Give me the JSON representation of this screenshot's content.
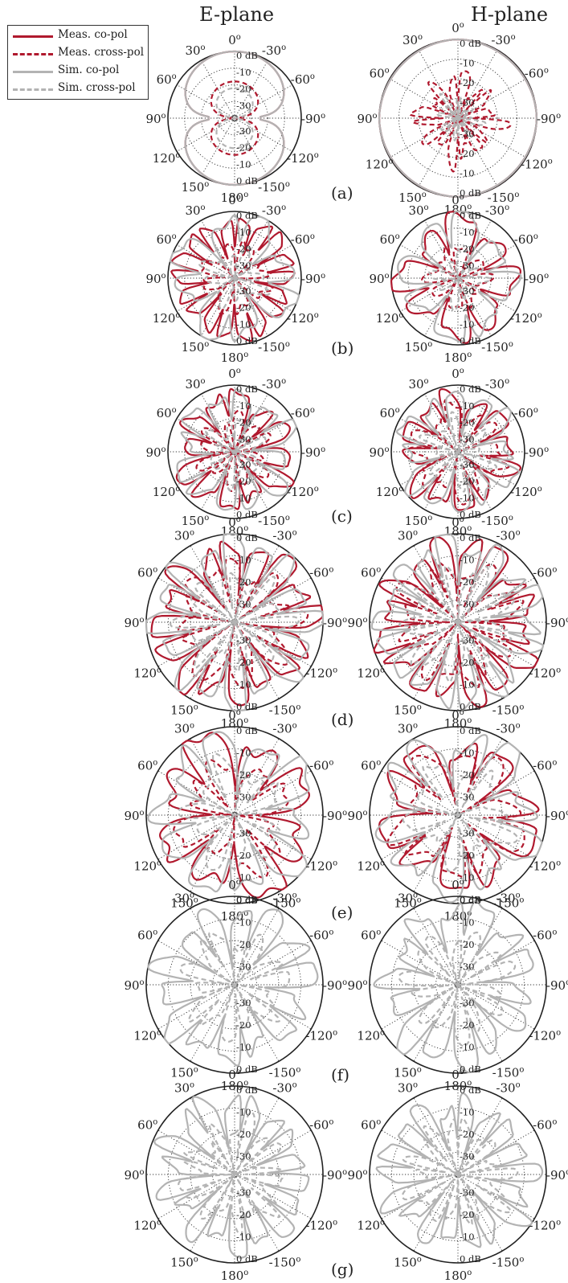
{
  "titles": {
    "e_plane": "E-plane",
    "h_plane": "H-plane"
  },
  "legend": [
    {
      "label": "Meas. co-pol",
      "color": "#b0192e",
      "dash": "solid"
    },
    {
      "label": "Meas. cross-pol",
      "color": "#b0192e",
      "dash": "dashed"
    },
    {
      "label": "Sim. co-pol",
      "color": "#b3b3b3",
      "dash": "solid"
    },
    {
      "label": "Sim. cross-pol",
      "color": "#b3b3b3",
      "dash": "dashed"
    }
  ],
  "angle_labels": [
    {
      "deg": 0,
      "text": "0o"
    },
    {
      "deg": -30,
      "text": "-30o"
    },
    {
      "deg": -60,
      "text": "-60o"
    },
    {
      "deg": -90,
      "text": "-90o"
    },
    {
      "deg": -120,
      "text": "-120o"
    },
    {
      "deg": -150,
      "text": "-150o"
    },
    {
      "deg": 180,
      "text": "180o"
    },
    {
      "deg": 150,
      "text": "150o"
    },
    {
      "deg": 120,
      "text": "120o"
    },
    {
      "deg": 90,
      "text": "90o"
    },
    {
      "deg": 60,
      "text": "60o"
    },
    {
      "deg": 30,
      "text": "30o"
    }
  ],
  "radial_labels_upper": [
    "0 dB",
    "-10",
    "-20",
    "-30"
  ],
  "radial_labels_lower": [
    "-30",
    "-20",
    "-10",
    "0 dB"
  ],
  "subfigure_labels": [
    "(a)",
    "(b)",
    "(c)",
    "(d)",
    "(e)",
    "(f)",
    "(g)"
  ],
  "chart_data": [
    {
      "type": "polar",
      "subfigure": "(a)",
      "plane": "E-plane",
      "rlim_db": [
        -40,
        0
      ],
      "series": [
        {
          "name": "Meas. co-pol",
          "pattern": "figure-eight",
          "max_db": 0
        },
        {
          "name": "Meas. cross-pol",
          "pattern": "figure-eight",
          "max_db": -18
        },
        {
          "name": "Sim. co-pol",
          "pattern": "figure-eight",
          "max_db": 0
        },
        {
          "name": "Sim. cross-pol",
          "pattern": "figure-eight",
          "max_db": -22
        }
      ]
    },
    {
      "type": "polar",
      "subfigure": "(a)",
      "plane": "H-plane",
      "rlim_db": [
        -40,
        0
      ],
      "series": [
        {
          "name": "Meas. co-pol",
          "pattern": "omnidirectional",
          "max_db": 0
        },
        {
          "name": "Meas. cross-pol",
          "pattern": "multi-lobe",
          "max_db": -16
        },
        {
          "name": "Sim. co-pol",
          "pattern": "omnidirectional",
          "max_db": 0
        },
        {
          "name": "Sim. cross-pol",
          "pattern": "multi-lobe",
          "max_db": -28
        }
      ]
    },
    {
      "type": "polar",
      "subfigure": "(b)",
      "plane": "E-plane",
      "rlim_db": [
        -40,
        0
      ],
      "series": [
        {
          "name": "Meas. co-pol",
          "pattern": "multi-lobe",
          "max_db": -1
        },
        {
          "name": "Meas. cross-pol",
          "pattern": "multi-lobe",
          "max_db": -16
        },
        {
          "name": "Sim. co-pol",
          "pattern": "multi-lobe",
          "max_db": -1
        },
        {
          "name": "Sim. cross-pol",
          "pattern": "multi-lobe",
          "max_db": -20
        }
      ]
    },
    {
      "type": "polar",
      "subfigure": "(b)",
      "plane": "H-plane",
      "rlim_db": [
        -40,
        0
      ],
      "series": [
        {
          "name": "Meas. co-pol",
          "pattern": "multi-lobe",
          "max_db": -2
        },
        {
          "name": "Meas. cross-pol",
          "pattern": "multi-lobe",
          "max_db": -18
        },
        {
          "name": "Sim. co-pol",
          "pattern": "multi-lobe",
          "max_db": -2
        },
        {
          "name": "Sim. cross-pol",
          "pattern": "multi-lobe",
          "max_db": -22
        }
      ]
    },
    {
      "type": "polar",
      "subfigure": "(c)",
      "plane": "E-plane",
      "rlim_db": [
        -40,
        0
      ],
      "series": [
        {
          "name": "Meas. co-pol",
          "pattern": "multi-lobe",
          "max_db": -3
        },
        {
          "name": "Meas. cross-pol",
          "pattern": "multi-lobe",
          "max_db": -16
        },
        {
          "name": "Sim. co-pol",
          "pattern": "multi-lobe",
          "max_db": -2
        },
        {
          "name": "Sim. cross-pol",
          "pattern": "multi-lobe",
          "max_db": -20
        }
      ]
    },
    {
      "type": "polar",
      "subfigure": "(c)",
      "plane": "H-plane",
      "rlim_db": [
        -40,
        0
      ],
      "series": [
        {
          "name": "Meas. co-pol",
          "pattern": "multi-lobe",
          "max_db": -3
        },
        {
          "name": "Meas. cross-pol",
          "pattern": "multi-lobe",
          "max_db": -10
        },
        {
          "name": "Sim. co-pol",
          "pattern": "multi-lobe",
          "max_db": -2
        },
        {
          "name": "Sim. cross-pol",
          "pattern": "multi-lobe",
          "max_db": -18
        }
      ]
    },
    {
      "type": "polar",
      "subfigure": "(d)",
      "plane": "E-plane",
      "rlim_db": [
        -40,
        0
      ],
      "series": [
        {
          "name": "Meas. co-pol",
          "pattern": "multi-lobe",
          "max_db": -1
        },
        {
          "name": "Meas. cross-pol",
          "pattern": "multi-lobe",
          "max_db": -10
        },
        {
          "name": "Sim. co-pol",
          "pattern": "multi-lobe",
          "max_db": 0
        },
        {
          "name": "Sim. cross-pol",
          "pattern": "multi-lobe",
          "max_db": -14
        }
      ]
    },
    {
      "type": "polar",
      "subfigure": "(d)",
      "plane": "H-plane",
      "rlim_db": [
        -40,
        0
      ],
      "series": [
        {
          "name": "Meas. co-pol",
          "pattern": "multi-lobe",
          "max_db": -1
        },
        {
          "name": "Meas. cross-pol",
          "pattern": "multi-lobe",
          "max_db": -10
        },
        {
          "name": "Sim. co-pol",
          "pattern": "multi-lobe",
          "max_db": 0
        },
        {
          "name": "Sim. cross-pol",
          "pattern": "multi-lobe",
          "max_db": -14
        }
      ]
    },
    {
      "type": "polar",
      "subfigure": "(e)",
      "plane": "E-plane",
      "rlim_db": [
        -40,
        0
      ],
      "series": [
        {
          "name": "Meas. co-pol",
          "pattern": "multi-lobe",
          "max_db": -2
        },
        {
          "name": "Meas. cross-pol",
          "pattern": "multi-lobe",
          "max_db": -12
        },
        {
          "name": "Sim. co-pol",
          "pattern": "multi-lobe",
          "max_db": -1
        },
        {
          "name": "Sim. cross-pol",
          "pattern": "multi-lobe",
          "max_db": -14
        }
      ]
    },
    {
      "type": "polar",
      "subfigure": "(e)",
      "plane": "H-plane",
      "rlim_db": [
        -40,
        0
      ],
      "series": [
        {
          "name": "Meas. co-pol",
          "pattern": "multi-lobe",
          "max_db": -3
        },
        {
          "name": "Meas. cross-pol",
          "pattern": "multi-lobe",
          "max_db": -8
        },
        {
          "name": "Sim. co-pol",
          "pattern": "multi-lobe",
          "max_db": -1
        },
        {
          "name": "Sim. cross-pol",
          "pattern": "multi-lobe",
          "max_db": -14
        }
      ]
    },
    {
      "type": "polar",
      "subfigure": "(f)",
      "plane": "E-plane",
      "rlim_db": [
        -40,
        0
      ],
      "series": [
        {
          "name": "Sim. co-pol",
          "pattern": "multi-lobe",
          "max_db": -2
        },
        {
          "name": "Sim. cross-pol",
          "pattern": "multi-lobe",
          "max_db": -14
        }
      ]
    },
    {
      "type": "polar",
      "subfigure": "(f)",
      "plane": "H-plane",
      "rlim_db": [
        -40,
        0
      ],
      "series": [
        {
          "name": "Sim. co-pol",
          "pattern": "multi-lobe",
          "max_db": -2
        },
        {
          "name": "Sim. cross-pol",
          "pattern": "multi-lobe",
          "max_db": -14
        }
      ]
    },
    {
      "type": "polar",
      "subfigure": "(g)",
      "plane": "E-plane",
      "rlim_db": [
        -40,
        0
      ],
      "series": [
        {
          "name": "Sim. co-pol",
          "pattern": "multi-lobe",
          "max_db": -3
        },
        {
          "name": "Sim. cross-pol",
          "pattern": "multi-lobe",
          "max_db": -14
        }
      ]
    },
    {
      "type": "polar",
      "subfigure": "(g)",
      "plane": "H-plane",
      "rlim_db": [
        -40,
        0
      ],
      "series": [
        {
          "name": "Sim. co-pol",
          "pattern": "multi-lobe",
          "max_db": -3
        },
        {
          "name": "Sim. cross-pol",
          "pattern": "multi-lobe",
          "max_db": -14
        }
      ]
    }
  ]
}
